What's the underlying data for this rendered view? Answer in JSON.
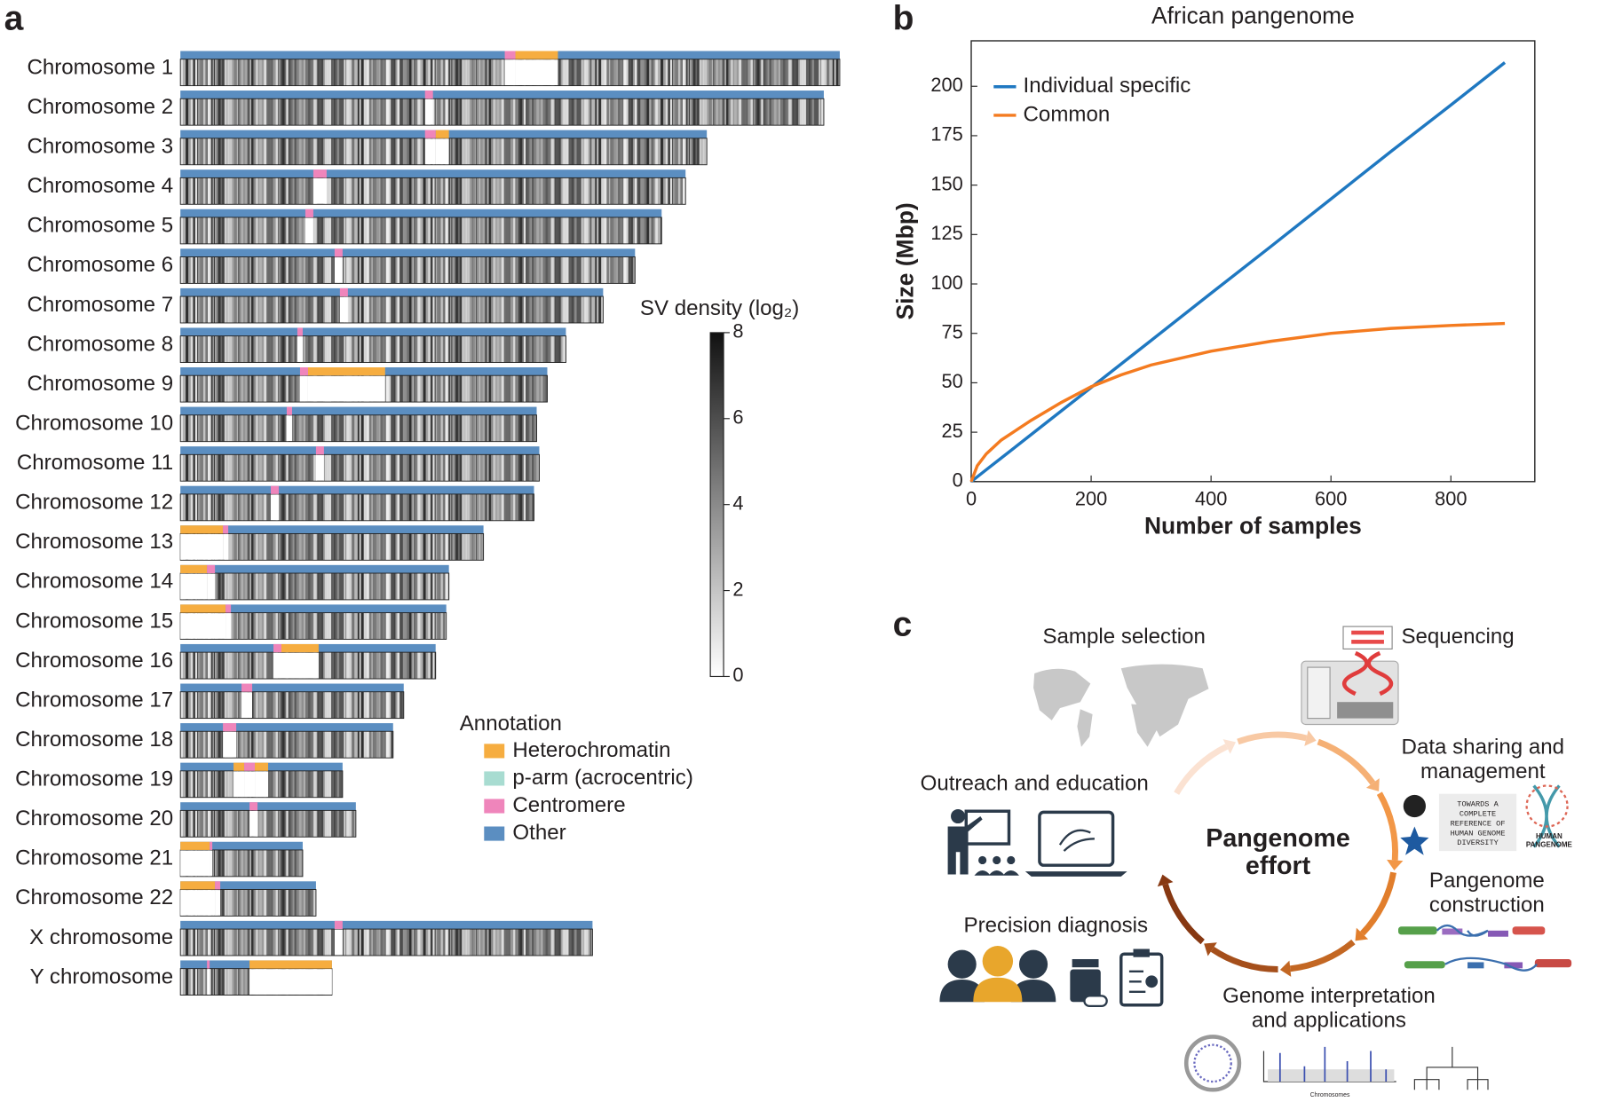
{
  "chart_data": [
    {
      "type": "ideogram",
      "panel": "a",
      "chromosomes": [
        {
          "name": "Chromosome 1",
          "length": 248,
          "centromere": [
            122,
            126
          ],
          "heterochromatin": [
            [
              126,
              142
            ]
          ]
        },
        {
          "name": "Chromosome 2",
          "length": 242,
          "centromere": [
            92,
            95
          ],
          "heterochromatin": []
        },
        {
          "name": "Chromosome 3",
          "length": 198,
          "centromere": [
            92,
            96
          ],
          "heterochromatin": [
            [
              96,
              101
            ]
          ]
        },
        {
          "name": "Chromosome 4",
          "length": 190,
          "centromere": [
            50,
            55
          ],
          "heterochromatin": []
        },
        {
          "name": "Chromosome 5",
          "length": 181,
          "centromere": [
            47,
            50
          ],
          "heterochromatin": []
        },
        {
          "name": "Chromosome 6",
          "length": 171,
          "centromere": [
            58,
            61
          ],
          "heterochromatin": []
        },
        {
          "name": "Chromosome 7",
          "length": 159,
          "centromere": [
            60,
            63
          ],
          "heterochromatin": []
        },
        {
          "name": "Chromosome 8",
          "length": 145,
          "centromere": [
            44,
            46
          ],
          "heterochromatin": []
        },
        {
          "name": "Chromosome 9",
          "length": 138,
          "centromere": [
            45,
            48
          ],
          "heterochromatin": [
            [
              48,
              77
            ]
          ]
        },
        {
          "name": "Chromosome 10",
          "length": 134,
          "centromere": [
            40,
            42
          ],
          "heterochromatin": []
        },
        {
          "name": "Chromosome 11",
          "length": 135,
          "centromere": [
            51,
            54
          ],
          "heterochromatin": []
        },
        {
          "name": "Chromosome 12",
          "length": 133,
          "centromere": [
            34,
            37
          ],
          "heterochromatin": []
        },
        {
          "name": "Chromosome 13",
          "length": 114,
          "centromere": [
            16,
            18
          ],
          "heterochromatin": [
            [
              0,
              16
            ]
          ]
        },
        {
          "name": "Chromosome 14",
          "length": 101,
          "centromere": [
            10,
            13
          ],
          "heterochromatin": [
            [
              0,
              10
            ]
          ]
        },
        {
          "name": "Chromosome 15",
          "length": 100,
          "centromere": [
            17,
            19
          ],
          "heterochromatin": [
            [
              0,
              17
            ]
          ]
        },
        {
          "name": "Chromosome 16",
          "length": 96,
          "centromere": [
            35,
            38
          ],
          "heterochromatin": [
            [
              38,
              52
            ]
          ]
        },
        {
          "name": "Chromosome 17",
          "length": 84,
          "centromere": [
            23,
            27
          ],
          "heterochromatin": []
        },
        {
          "name": "Chromosome 18",
          "length": 80,
          "centromere": [
            16,
            21
          ],
          "heterochromatin": []
        },
        {
          "name": "Chromosome 19",
          "length": 61,
          "centromere": [
            24,
            28
          ],
          "heterochromatin": [
            [
              20,
              24
            ],
            [
              28,
              33
            ]
          ]
        },
        {
          "name": "Chromosome 20",
          "length": 66,
          "centromere": [
            26,
            29
          ],
          "heterochromatin": []
        },
        {
          "name": "Chromosome 21",
          "length": 46,
          "centromere": [
            11,
            12
          ],
          "heterochromatin": [
            [
              0,
              11
            ]
          ]
        },
        {
          "name": "Chromosome 22",
          "length": 51,
          "centromere": [
            13,
            15
          ],
          "heterochromatin": [
            [
              0,
              13
            ]
          ]
        },
        {
          "name": "X chromosome",
          "length": 155,
          "centromere": [
            58,
            61
          ],
          "heterochromatin": []
        },
        {
          "name": "Y chromosome",
          "length": 57,
          "centromere": [
            10,
            11
          ],
          "heterochromatin": [
            [
              26,
              57
            ]
          ]
        }
      ],
      "annotation_title": "Annotation",
      "annotations": [
        {
          "name": "Heterochromatin",
          "color": "#f6ad40"
        },
        {
          "name": "p-arm (acrocentric)",
          "color": "#a8dcd1"
        },
        {
          "name": "Centromere",
          "color": "#ef85bb"
        },
        {
          "name": "Other",
          "color": "#5b8ec1"
        }
      ],
      "colorbar": {
        "title": "SV density (log₂)",
        "ylim": [
          0,
          8
        ],
        "yticks": [
          0,
          2,
          4,
          6,
          8
        ]
      }
    },
    {
      "type": "line",
      "panel": "b",
      "title": "African pangenome",
      "xlabel": "Number of samples",
      "ylabel": "Size (Mbp)",
      "x": [
        0,
        10,
        25,
        50,
        100,
        150,
        200,
        250,
        300,
        400,
        500,
        600,
        700,
        800,
        890
      ],
      "series": [
        {
          "name": "Individual specific",
          "color": "#1f78c1",
          "values": [
            0,
            2.4,
            6,
            11.9,
            23.8,
            35.7,
            47.6,
            59.5,
            71.4,
            95.3,
            119,
            143,
            167,
            190.5,
            212
          ]
        },
        {
          "name": "Common",
          "color": "#f47b20",
          "values": [
            0,
            8,
            14,
            21,
            31,
            40,
            48,
            54,
            59,
            66,
            71,
            75,
            77.5,
            79,
            80
          ]
        }
      ],
      "xlim": [
        0,
        940
      ],
      "ylim": [
        0,
        223
      ],
      "xticks": [
        0,
        200,
        400,
        600,
        800
      ],
      "yticks": [
        0,
        25,
        50,
        75,
        100,
        125,
        150,
        175,
        200
      ],
      "legend": "upper left"
    }
  ],
  "diagram": {
    "panel": "c",
    "center": [
      "Pangenome",
      "effort"
    ],
    "steps": [
      {
        "lines": [
          "Sample selection"
        ]
      },
      {
        "lines": [
          "Sequencing"
        ]
      },
      {
        "lines": [
          "Data sharing and",
          "management"
        ]
      },
      {
        "lines": [
          "Pangenome",
          "construction"
        ]
      },
      {
        "lines": [
          "Genome interpretation",
          "and applications"
        ]
      },
      {
        "lines": [
          "Precision diagnosis"
        ]
      },
      {
        "lines": [
          "Outreach and education"
        ]
      }
    ],
    "poster": [
      "TOWARDS A",
      "COMPLETE",
      "REFERENCE OF",
      "HUMAN GENOME",
      "DIVERSITY"
    ],
    "logo": [
      "HUMAN",
      "PANGENOME"
    ],
    "plot_axis": "Chromosomes"
  }
}
